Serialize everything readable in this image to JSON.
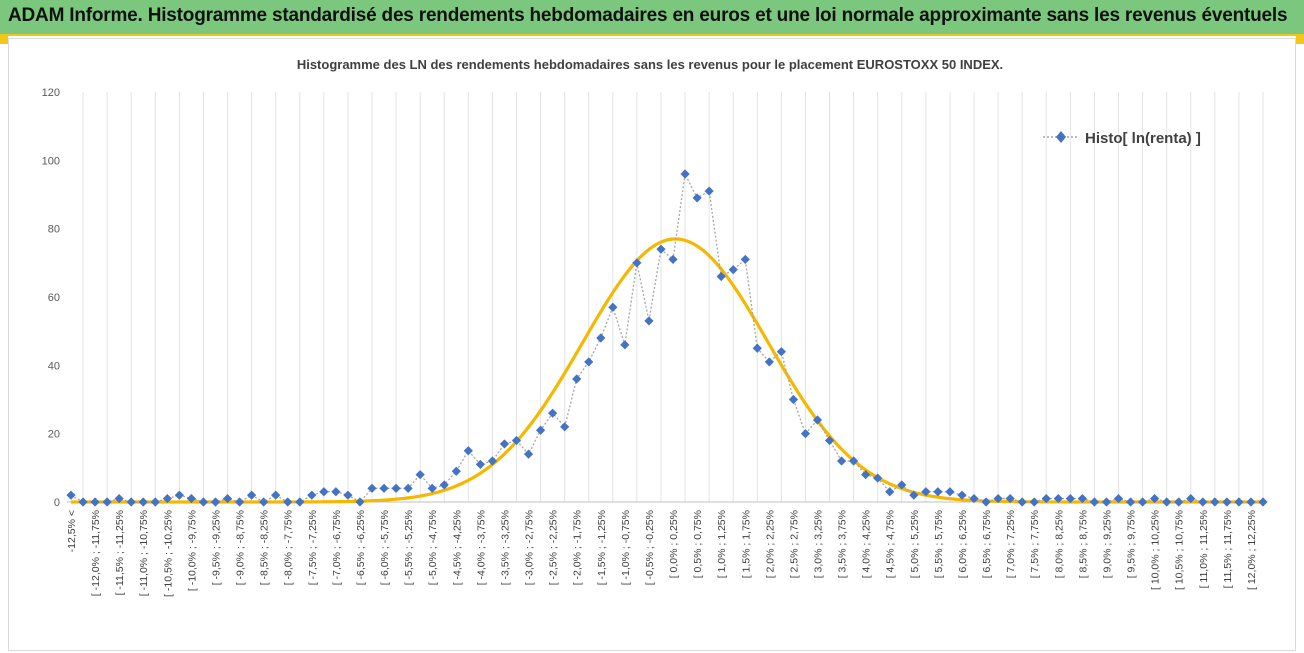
{
  "header": {
    "title": "ADAM Informe. Histogramme standardisé des rendements hebdomadaires en euros et une loi normale approximante sans les revenus éventuels"
  },
  "colors": {
    "header_bg": "#7bc77d",
    "accent": "#f5c518",
    "series_marker": "#4472c4",
    "normal_curve": "#f5b800"
  },
  "chart_data": {
    "type": "line",
    "title": "Histogramme des LN des rendements hebdomadaires sans les revenus pour le placement EUROSTOXX 50 INDEX.",
    "ylim": [
      0,
      120
    ],
    "yticks": [
      0,
      20,
      40,
      60,
      80,
      100,
      120
    ],
    "grid": "vertical",
    "legend_position": "top-right",
    "categories": [
      "-12,5% <",
      "[ -12,25% ; -12,0%",
      "[ -12,0% ; -11,75%",
      "[ -11,75% ; -11,5%",
      "[ -11,5% ; -11,25%",
      "[ -11,25% ; -11,0%",
      "[ -11,0% ; -10,75%",
      "[ -10,75% ; -10,5%",
      "[ -10,5% ; -10,25%",
      "[ -10,25% ; -10,0%",
      "[ -10,0% ; -9,75%",
      "[ -9,75% ; -9,5%",
      "[ -9,5% ; -9,25%",
      "[ -9,25% ; -9,0%",
      "[ -9,0% ; -8,75%",
      "[ -8,75% ; -8,5%",
      "[ -8,5% ; -8,25%",
      "[ -8,25% ; -8,0%",
      "[ -8,0% ; -7,75%",
      "[ -7,75% ; -7,5%",
      "[ -7,5% ; -7,25%",
      "[ -7,25% ; -7,0%",
      "[ -7,0% ; -6,75%",
      "[ -6,75% ; -6,5%",
      "[ -6,5% ; -6,25%",
      "[ -6,25% ; -6,0%",
      "[ -6,0% ; -5,75%",
      "[ -5,75% ; -5,5%",
      "[ -5,5% ; -5,25%",
      "[ -5,25% ; -5,0%",
      "[ -5,0% ; -4,75%",
      "[ -4,75% ; -4,5%",
      "[ -4,5% ; -4,25%",
      "[ -4,25% ; -4,0%",
      "[ -4,0% ; -3,75%",
      "[ -3,75% ; -3,5%",
      "[ -3,5% ; -3,25%",
      "[ -3,25% ; -3,0%",
      "[ -3,0% ; -2,75%",
      "[ -2,75% ; -2,5%",
      "[ -2,5% ; -2,25%",
      "[ -2,25% ; -2,0%",
      "[ -2,0% ; -1,75%",
      "[ -1,75% ; -1,5%",
      "[ -1,5% ; -1,25%",
      "[ -1,25% ; -1,0%",
      "[ -1,0% ; -0,75%",
      "[ -0,75% ; -0,5%",
      "[ -0,5% ; -0,25%",
      "[ -0,25% ; 0,0%",
      "[ 0,0% ; 0,25%",
      "[ 0,25% ; 0,5%",
      "[ 0,5% ; 0,75%",
      "[ 0,75% ; 1,0%",
      "[ 1,0% ; 1,25%",
      "[ 1,25% ; 1,5%",
      "[ 1,5% ; 1,75%",
      "[ 1,75% ; 2,0%",
      "[ 2,0% ; 2,25%",
      "[ 2,25% ; 2,5%",
      "[ 2,5% ; 2,75%",
      "[ 2,75% ; 3,0%",
      "[ 3,0% ; 3,25%",
      "[ 3,25% ; 3,5%",
      "[ 3,5% ; 3,75%",
      "[ 3,75% ; 4,0%",
      "[ 4,0% ; 4,25%",
      "[ 4,25% ; 4,5%",
      "[ 4,5% ; 4,75%",
      "[ 4,75% ; 5,0%",
      "[ 5,0% ; 5,25%",
      "[ 5,25% ; 5,5%",
      "[ 5,5% ; 5,75%",
      "[ 5,75% ; 6,0%",
      "[ 6,0% ; 6,25%",
      "[ 6,25% ; 6,5%",
      "[ 6,5% ; 6,75%",
      "[ 6,75% ; 7,0%",
      "[ 7,0% ; 7,25%",
      "[ 7,25% ; 7,5%",
      "[ 7,5% ; 7,75%",
      "[ 7,75% ; 8,0%",
      "[ 8,0% ; 8,25%",
      "[ 8,25% ; 8,5%",
      "[ 8,5% ; 8,75%",
      "[ 8,75% ; 9,0%",
      "[ 9,0% ; 9,25%",
      "[ 9,25% ; 9,5%",
      "[ 9,5% ; 9,75%",
      "[ 9,75% ; 10,0%",
      "[ 10,0% ; 10,25%",
      "[ 10,25% ; 10,5%",
      "[ 10,5% ; 10,75%",
      "[ 10,75% ; 11,0%",
      "[ 11,0% ; 11,25%",
      "[ 11,25% ; 11,5%",
      "[ 11,5% ; 11,75%",
      "[ 11,75% ; 12,0%",
      "[ 12,0% ; 12,25%",
      "[ 12,25% ; 12,5%"
    ],
    "label_stride": 2,
    "series": [
      {
        "name": "Histo[ ln(renta) ]",
        "style": "dotted line with diamond markers",
        "values": [
          2,
          0,
          0,
          0,
          1,
          0,
          0,
          0,
          1,
          2,
          1,
          0,
          0,
          1,
          0,
          2,
          0,
          2,
          0,
          0,
          2,
          3,
          3,
          2,
          0,
          4,
          4,
          4,
          4,
          8,
          4,
          5,
          9,
          15,
          11,
          12,
          17,
          18,
          14,
          21,
          26,
          22,
          36,
          41,
          48,
          57,
          46,
          70,
          53,
          74,
          71,
          96,
          89,
          91,
          66,
          68,
          71,
          45,
          41,
          44,
          30,
          20,
          24,
          18,
          12,
          12,
          8,
          7,
          3,
          5,
          2,
          3,
          3,
          3,
          2,
          1,
          0,
          1,
          1,
          0,
          0,
          1,
          1,
          1,
          1,
          0,
          0,
          1,
          0,
          0,
          1,
          0,
          0,
          1,
          0,
          0,
          0,
          0,
          0,
          0
        ]
      },
      {
        "style": "smooth normal curve",
        "normal": {
          "peak": 77,
          "peak_index": 50.2,
          "sigma_bins": 7.7
        }
      }
    ]
  }
}
